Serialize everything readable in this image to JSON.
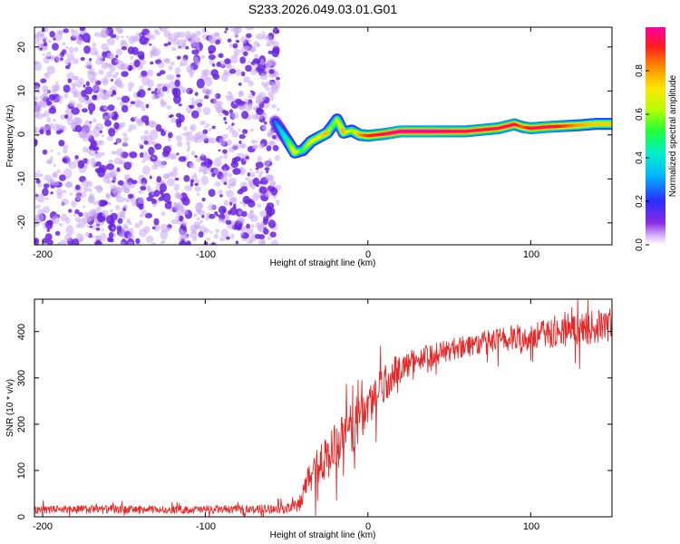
{
  "figure_title": "S233.2026.049.03.01.G01",
  "colors": {
    "snr_line": "#e32a2a",
    "noise_dots": "#6a22e0",
    "axis": "#000000"
  },
  "colorbar": {
    "label": "Normalized spectral amplitude",
    "ticks": [
      "0.0",
      "0.2",
      "0.4",
      "0.6",
      "0.8"
    ],
    "range": [
      0,
      1
    ]
  },
  "chart_data": [
    {
      "type": "heatmap",
      "title": "S233.2026.049.03.01.G01",
      "xlabel": "Height of straight line (km)",
      "ylabel": "Frequency (Hz)",
      "xlim": [
        -205,
        150
      ],
      "ylim": [
        -25,
        24.5
      ],
      "x_ticks": [
        -200,
        -100,
        0,
        100
      ],
      "x_tick_labels": [
        "-200",
        "-100",
        "0",
        "100"
      ],
      "y_ticks": [
        20,
        10,
        0,
        -10,
        -20
      ],
      "y_tick_labels": [
        "20",
        "10",
        "0",
        "-10",
        "-20"
      ],
      "noise_region_x": [
        -205,
        -55
      ],
      "ridge": {
        "x": [
          -57,
          -50,
          -45,
          -40,
          -35,
          -30,
          -25,
          -22,
          -19,
          -15,
          -10,
          -5,
          0,
          10,
          20,
          40,
          60,
          80,
          90,
          95,
          100,
          110,
          120,
          130,
          140,
          150
        ],
        "freq": [
          3.0,
          -1.0,
          -4.0,
          -3.5,
          -1.5,
          -0.5,
          0.5,
          2.0,
          3.5,
          0.5,
          1.0,
          0.0,
          -0.2,
          0.2,
          0.8,
          0.8,
          0.8,
          1.5,
          2.4,
          1.8,
          1.5,
          1.8,
          2.0,
          2.2,
          2.5,
          2.5
        ],
        "amplitude": [
          0.25,
          0.45,
          0.75,
          0.5,
          0.7,
          0.7,
          0.8,
          0.55,
          0.6,
          0.8,
          0.6,
          0.8,
          0.9,
          0.95,
          1.0,
          1.0,
          0.95,
          0.95,
          0.95,
          0.85,
          0.95,
          0.95,
          0.9,
          0.8,
          0.75,
          0.75
        ]
      }
    },
    {
      "type": "line",
      "xlabel": "Height of straight line (km)",
      "ylabel": "SNR (10 * v/v)",
      "xlim": [
        -205,
        150
      ],
      "ylim": [
        0,
        470
      ],
      "x_ticks": [
        -200,
        -100,
        0,
        100
      ],
      "x_tick_labels": [
        "-200",
        "-100",
        "0",
        "100"
      ],
      "y_ticks": [
        0,
        100,
        200,
        300,
        400
      ],
      "y_tick_labels": [
        "0",
        "100",
        "200",
        "300",
        "400"
      ],
      "series": [
        {
          "name": "SNR",
          "x": [
            -205,
            -180,
            -150,
            -120,
            -90,
            -70,
            -60,
            -50,
            -43,
            -38,
            -35,
            -30,
            -25,
            -20,
            -15,
            -10,
            -5,
            0,
            5,
            10,
            15,
            20,
            25,
            30,
            40,
            50,
            60,
            70,
            80,
            90,
            100,
            110,
            120,
            130,
            140,
            150
          ],
          "y": [
            15,
            16,
            16,
            15,
            16,
            16,
            17,
            18,
            22,
            60,
            95,
            115,
            130,
            150,
            170,
            190,
            215,
            240,
            265,
            290,
            300,
            320,
            330,
            340,
            350,
            360,
            370,
            375,
            380,
            385,
            390,
            395,
            400,
            405,
            410,
            415
          ],
          "noise_amplitude": [
            8,
            9,
            9,
            8,
            9,
            9,
            10,
            10,
            15,
            35,
            40,
            45,
            50,
            55,
            55,
            55,
            55,
            50,
            45,
            40,
            35,
            30,
            28,
            27,
            25,
            24,
            24,
            26,
            28,
            30,
            30,
            30,
            32,
            34,
            36,
            38
          ]
        }
      ]
    }
  ]
}
